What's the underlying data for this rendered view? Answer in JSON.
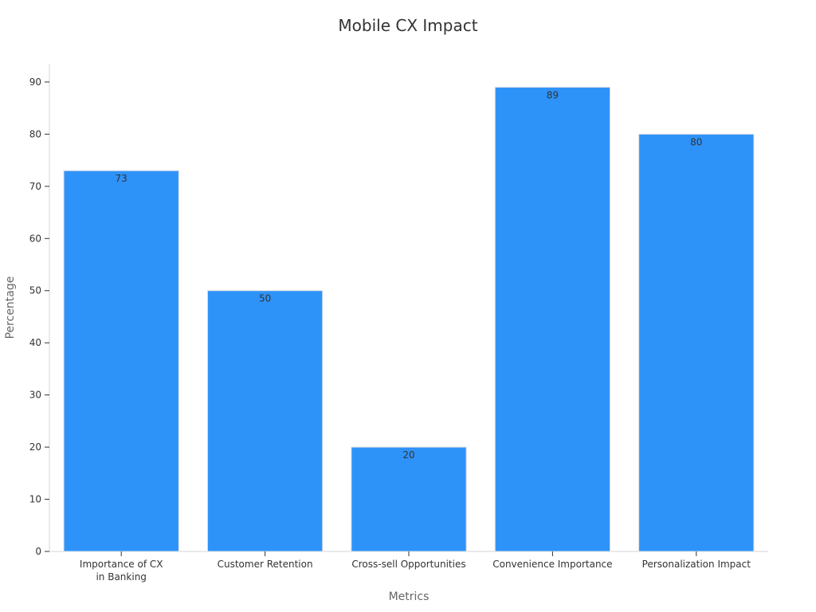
{
  "chart_data": {
    "type": "bar",
    "title": "Mobile CX Impact",
    "xlabel": "Metrics",
    "ylabel": "Percentage",
    "categories": [
      "Importance of CX\nin Banking",
      "Customer Retention",
      "Cross-sell Opportunities",
      "Convenience Importance",
      "Personalization Impact"
    ],
    "values": [
      73,
      50,
      20,
      89,
      80
    ],
    "data_labels": [
      "73",
      "50",
      "20",
      "89",
      "80"
    ],
    "y_ticks": [
      0,
      10,
      20,
      30,
      40,
      50,
      60,
      70,
      80,
      90
    ],
    "ylim": [
      0,
      93.5
    ],
    "grid": false,
    "legend": "none",
    "bar_color": "#2e93f9",
    "bar_edge_color": "#e0e0e0"
  }
}
